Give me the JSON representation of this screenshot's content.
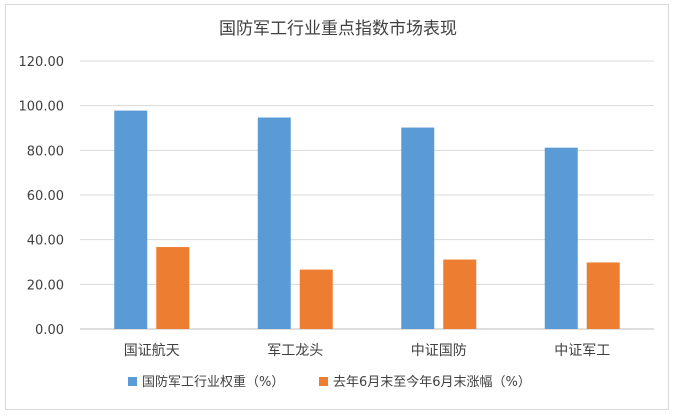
{
  "chart_data": {
    "type": "bar",
    "title": "国防军工行业重点指数市场表现",
    "categories": [
      "国证航天",
      "军工龙头",
      "中证国防",
      "中证军工"
    ],
    "series": [
      {
        "name": "国防军工行业权重（%）",
        "color": "#5b9bd5",
        "values": [
          97.8,
          94.7,
          90.2,
          81.2
        ]
      },
      {
        "name": "去年6月末至今年6月末涨幅（%）",
        "color": "#ed7d31",
        "values": [
          36.7,
          26.6,
          31.1,
          29.8
        ]
      }
    ],
    "y_ticks": [
      "0.00",
      "20.00",
      "40.00",
      "60.00",
      "80.00",
      "100.00",
      "120.00"
    ],
    "ylim": [
      0,
      120
    ],
    "grid": true,
    "legend_position": "bottom"
  }
}
